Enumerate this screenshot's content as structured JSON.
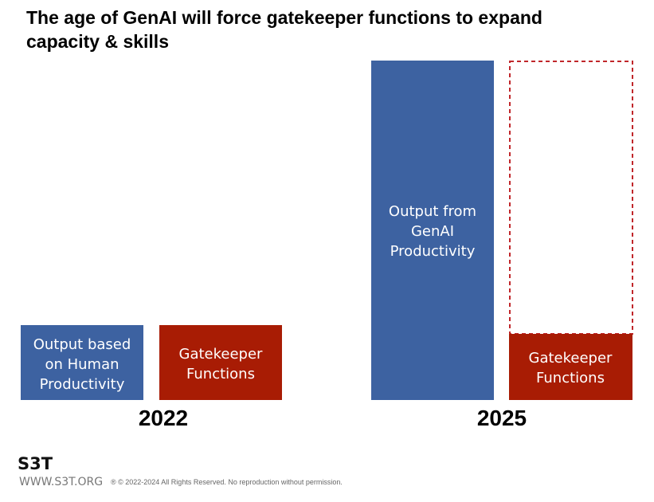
{
  "title": [
    "The age of GenAI will force gatekeeper functions to expand",
    "capacity & skills"
  ],
  "groups": [
    {
      "year": "2022",
      "boxes": [
        {
          "lines": [
            "Output based",
            "on Human",
            "Productivity"
          ]
        },
        {
          "lines": [
            "Gatekeeper",
            "Functions"
          ]
        }
      ]
    },
    {
      "year": "2025",
      "boxes": [
        {
          "lines": [
            "Output from",
            "GenAI",
            "Productivity"
          ]
        },
        {
          "lines": [
            "Gatekeeper",
            "Functions"
          ]
        }
      ]
    }
  ],
  "footer": {
    "logo": "S3T",
    "site": "WWW.S3T.ORG",
    "copyright": "® © 2022-2024 All Rights Reserved. No reproduction without permission."
  }
}
